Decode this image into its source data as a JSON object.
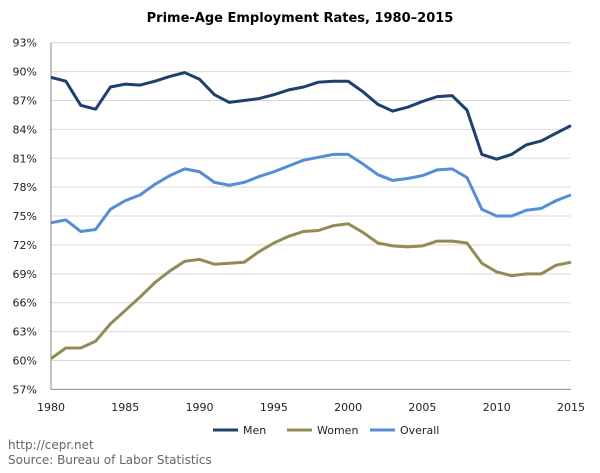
{
  "chart_data": {
    "type": "line",
    "title": "Prime-Age Employment Rates, 1980–2015",
    "xlabel": "",
    "ylabel": "",
    "xlim": [
      1980,
      2015
    ],
    "ylim": [
      57,
      93
    ],
    "grid": true,
    "legend_position": "bottom",
    "x_ticks": [
      "1980",
      "1985",
      "1990",
      "1995",
      "2000",
      "2005",
      "2010",
      "2015"
    ],
    "y_ticks": [
      "57%",
      "60%",
      "63%",
      "66%",
      "69%",
      "72%",
      "75%",
      "78%",
      "81%",
      "84%",
      "87%",
      "90%",
      "93%"
    ],
    "x": [
      1980,
      1981,
      1982,
      1983,
      1984,
      1985,
      1986,
      1987,
      1988,
      1989,
      1990,
      1991,
      1992,
      1993,
      1994,
      1995,
      1996,
      1997,
      1998,
      1999,
      2000,
      2001,
      2002,
      2003,
      2004,
      2005,
      2006,
      2007,
      2008,
      2009,
      2010,
      2011,
      2012,
      2013,
      2014,
      2015
    ],
    "series": [
      {
        "name": "Men",
        "color": "#1f3f6e",
        "values": [
          89.4,
          89.0,
          86.5,
          86.1,
          88.4,
          88.7,
          88.6,
          89.0,
          89.5,
          89.9,
          89.2,
          87.6,
          86.8,
          87.0,
          87.2,
          87.6,
          88.1,
          88.4,
          88.9,
          89.0,
          89.0,
          87.9,
          86.6,
          85.9,
          86.3,
          86.9,
          87.4,
          87.5,
          86.0,
          81.4,
          80.9,
          81.4,
          82.4,
          82.8,
          83.6,
          84.4
        ]
      },
      {
        "name": "Women",
        "color": "#948a54",
        "values": [
          60.2,
          61.3,
          61.3,
          62.0,
          63.8,
          65.2,
          66.6,
          68.1,
          69.3,
          70.3,
          70.5,
          70.0,
          70.1,
          70.2,
          71.3,
          72.2,
          72.9,
          73.4,
          73.5,
          74.0,
          74.2,
          73.3,
          72.2,
          71.9,
          71.8,
          71.9,
          72.4,
          72.4,
          72.2,
          70.1,
          69.2,
          68.8,
          69.0,
          69.0,
          69.9,
          70.2
        ]
      },
      {
        "name": "Overall",
        "color": "#558ed5",
        "values": [
          74.3,
          74.6,
          73.4,
          73.6,
          75.7,
          76.6,
          77.2,
          78.3,
          79.2,
          79.9,
          79.6,
          78.5,
          78.2,
          78.5,
          79.1,
          79.6,
          80.2,
          80.8,
          81.1,
          81.4,
          81.4,
          80.4,
          79.3,
          78.7,
          78.9,
          79.2,
          79.8,
          79.9,
          79.0,
          75.7,
          75.0,
          75.0,
          75.6,
          75.8,
          76.6,
          77.2
        ]
      }
    ]
  },
  "footer": {
    "url": "http://cepr.net",
    "source": "Source: Bureau of Labor Statistics"
  }
}
